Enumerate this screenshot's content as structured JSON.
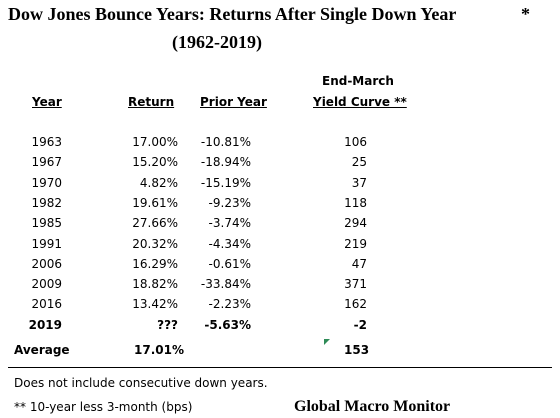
{
  "title": {
    "line1": "Dow Jones Bounce Years:  Returns After Single Down Year",
    "asterisk": "*",
    "line2": "(1962-2019)"
  },
  "columns": {
    "year": "Year",
    "return": "Return",
    "prior": "Prior Year",
    "yield_top": "End-March",
    "yield_bottom": "Yield Curve **"
  },
  "rows": [
    {
      "year": "1963",
      "ret": "17.00%",
      "prior": "-10.81%",
      "yc": "106"
    },
    {
      "year": "1967",
      "ret": "15.20%",
      "prior": "-18.94%",
      "yc": "25"
    },
    {
      "year": "1970",
      "ret": "4.82%",
      "prior": "-15.19%",
      "yc": "37"
    },
    {
      "year": "1982",
      "ret": "19.61%",
      "prior": "-9.23%",
      "yc": "118"
    },
    {
      "year": "1985",
      "ret": "27.66%",
      "prior": "-3.74%",
      "yc": "294"
    },
    {
      "year": "1991",
      "ret": "20.32%",
      "prior": "-4.34%",
      "yc": "219"
    },
    {
      "year": "2006",
      "ret": "16.29%",
      "prior": "-0.61%",
      "yc": "47"
    },
    {
      "year": "2009",
      "ret": "18.82%",
      "prior": "-33.84%",
      "yc": "371"
    },
    {
      "year": "2016",
      "ret": "13.42%",
      "prior": "-2.23%",
      "yc": "162"
    },
    {
      "year": "2019",
      "ret": "???",
      "prior": "-5.63%",
      "yc": "-2"
    }
  ],
  "average": {
    "label": "Average",
    "ret": "17.01%",
    "yc": "153"
  },
  "footnotes": {
    "note1": "Does not include consecutive down years.",
    "note2": "**  10-year less 3-month (bps)"
  },
  "brand": "Global Macro Monitor"
}
